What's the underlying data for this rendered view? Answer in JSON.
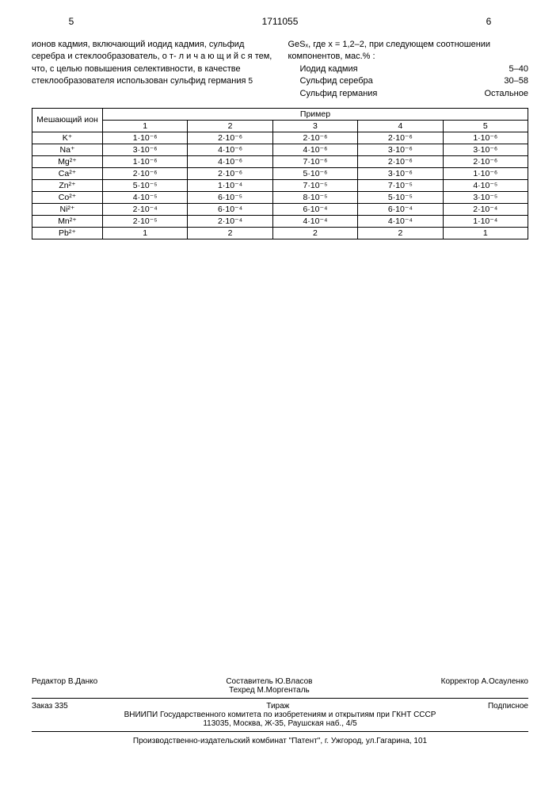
{
  "header": {
    "page_left": "5",
    "doc_number": "1711055",
    "page_right": "6"
  },
  "text_left": "ионов кадмия, включающий иодид кадмия, сульфид серебра и стеклообразователь, о т- л и ч а ю щ и й с я тем, что, с целью повышения селективности, в качестве стеклообразователя использован сульфид германия",
  "text_left_linenum": "5",
  "text_right_intro": "GeSₓ, где x = 1,2–2, при следующем соотношении компонентов, мас.% :",
  "composition": [
    {
      "name": "Иодид кадмия",
      "value": "5–40"
    },
    {
      "name": "Сульфид серебра",
      "value": "30–58"
    },
    {
      "name": "Сульфид германия",
      "value": "Остальное"
    }
  ],
  "table": {
    "header_ion": "Мешающий ион",
    "header_example": "Пример",
    "columns": [
      "1",
      "2",
      "3",
      "4",
      "5"
    ],
    "rows": [
      {
        "ion": "K⁺",
        "vals": [
          "1·10⁻⁶",
          "2·10⁻⁶",
          "2·10⁻⁶",
          "2·10⁻⁶",
          "1·10⁻⁶"
        ]
      },
      {
        "ion": "Na⁺",
        "vals": [
          "3·10⁻⁶",
          "4·10⁻⁶",
          "4·10⁻⁶",
          "3·10⁻⁶",
          "3·10⁻⁶"
        ]
      },
      {
        "ion": "Mg²⁺",
        "vals": [
          "1·10⁻⁶",
          "4·10⁻⁶",
          "7·10⁻⁶",
          "2·10⁻⁶",
          "2·10⁻⁶"
        ]
      },
      {
        "ion": "Ca²⁺",
        "vals": [
          "2·10⁻⁶",
          "2·10⁻⁶",
          "5·10⁻⁶",
          "3·10⁻⁶",
          "1·10⁻⁶"
        ]
      },
      {
        "ion": "Zn²⁺",
        "vals": [
          "5·10⁻⁵",
          "1·10⁻⁴",
          "7·10⁻⁵",
          "7·10⁻⁵",
          "4·10⁻⁵"
        ]
      },
      {
        "ion": "Co²⁺",
        "vals": [
          "4·10⁻⁵",
          "6·10⁻⁵",
          "8·10⁻⁵",
          "5·10⁻⁵",
          "3·10⁻⁵"
        ]
      },
      {
        "ion": "Ni²⁺",
        "vals": [
          "2·10⁻⁴",
          "6·10⁻⁴",
          "6·10⁻⁴",
          "6·10⁻⁴",
          "2·10⁻⁴"
        ]
      },
      {
        "ion": "Mn²⁺",
        "vals": [
          "2·10⁻⁵",
          "2·10⁻⁴",
          "4·10⁻⁴",
          "4·10⁻⁴",
          "1·10⁻⁴"
        ]
      },
      {
        "ion": "Pb²⁺",
        "vals": [
          "1",
          "2",
          "2",
          "2",
          "1"
        ]
      }
    ]
  },
  "footer": {
    "composer": "Составитель Ю.Власов",
    "editor": "Редактор В.Данко",
    "techred": "Техред М.Моргенталь",
    "corrector": "Корректор А.Осауленко",
    "order": "Заказ 335",
    "tirage": "Тираж",
    "subscription": "Подписное",
    "org": "ВНИИПИ Государственного комитета по изобретениям и открытиям при ГКНТ СССР",
    "address": "113035, Москва, Ж-35, Раушская наб., 4/5",
    "publisher": "Производственно-издательский комбинат \"Патент\", г. Ужгород, ул.Гагарина, 101"
  }
}
